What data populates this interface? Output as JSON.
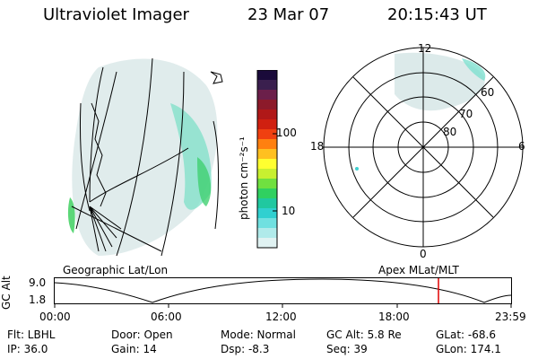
{
  "header": {
    "instrument": "Ultraviolet Imager",
    "date": "23 Mar 07",
    "time": "20:15:43 UT"
  },
  "colorbar": {
    "unit_label": "photon cm⁻²s⁻¹",
    "ticks": [
      "100",
      "10"
    ],
    "colors": [
      "#1a0a3a",
      "#3a1f4e",
      "#6b1f4a",
      "#8c1a2a",
      "#b01818",
      "#d02010",
      "#f04010",
      "#ff8010",
      "#ffc020",
      "#ffff30",
      "#c8f030",
      "#70e040",
      "#30d060",
      "#20c8a0",
      "#30d0d0",
      "#70e0e0",
      "#b0eaea",
      "#e0f2f2"
    ]
  },
  "left_map": {
    "caption": "Geographic Lat/Lon"
  },
  "polar_map": {
    "caption": "Apex MLat/MLT",
    "mlt_labels": {
      "top": "12",
      "left": "18",
      "right": "6",
      "bottom": "0"
    },
    "lat_labels": [
      "60",
      "70",
      "80"
    ]
  },
  "timeline": {
    "ylabel": "GC Alt",
    "y_ticks": [
      "9.0",
      "1.8"
    ],
    "x_ticks": [
      "00:00",
      "06:00",
      "12:00",
      "18:00",
      "23:59"
    ],
    "marker_color": "#e00000"
  },
  "status": {
    "flt": "Flt: LBHL",
    "ip": "IP: 36.0",
    "door": "Door: Open",
    "gain": "Gain: 14",
    "mode": "Mode: Normal",
    "dsp": "Dsp:   -8.3",
    "gc_alt": "GC Alt: 5.8 Re",
    "seq": "Seq: 39",
    "glat": "GLat:  -68.6",
    "glon": "GLon: 174.1"
  }
}
